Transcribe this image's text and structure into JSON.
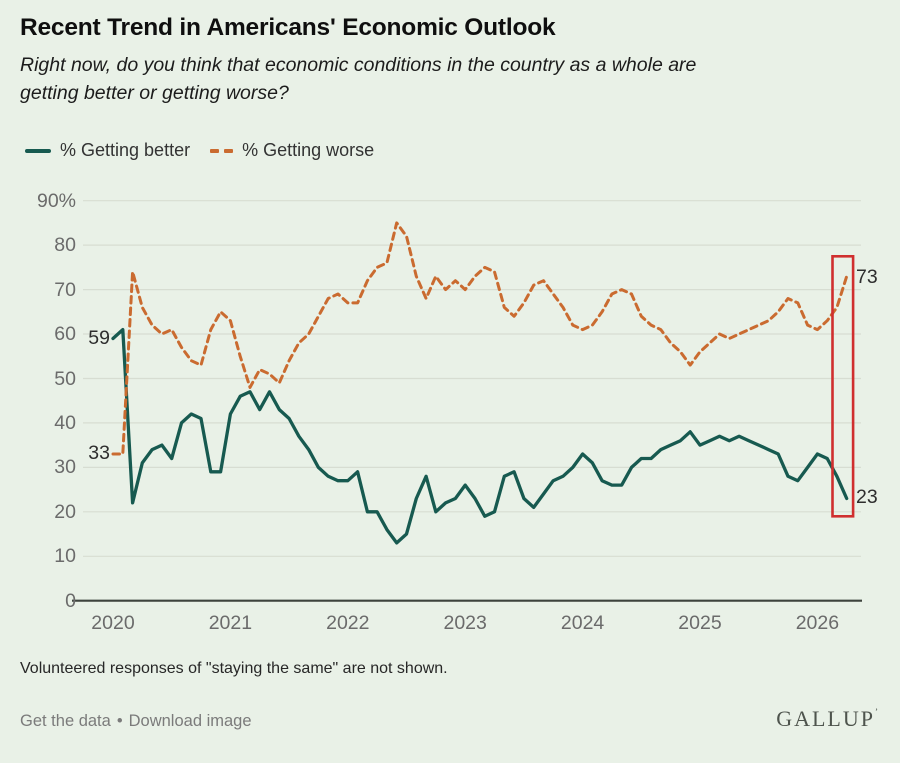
{
  "header": {
    "title": "Recent Trend in Americans' Economic Outlook",
    "subtitle_lines": [
      "Right now, do you think that economic conditions in the country as a whole are",
      "getting better or getting worse?"
    ]
  },
  "legend": {
    "better_label": "% Getting better",
    "worse_label": "% Getting worse"
  },
  "chart_data": {
    "type": "line",
    "x_unit": "month",
    "x_start": "2020-01",
    "x_ticks": [
      "2020",
      "2021",
      "2022",
      "2023",
      "2024",
      "2025",
      "2026"
    ],
    "y_ticks": [
      "90%",
      "80",
      "70",
      "60",
      "50",
      "40",
      "30",
      "20",
      "10",
      "0"
    ],
    "ylim": [
      0,
      90
    ],
    "grid": true,
    "legend_position": "top-left",
    "series": [
      {
        "name": "% Getting better",
        "color": "#175a50",
        "style": "solid",
        "start_label": "59",
        "end_label": "23",
        "values": [
          59,
          61,
          22,
          31,
          34,
          35,
          32,
          40,
          42,
          41,
          29,
          29,
          42,
          46,
          47,
          43,
          47,
          43,
          41,
          37,
          34,
          30,
          28,
          27,
          27,
          29,
          20,
          20,
          16,
          13,
          15,
          23,
          28,
          20,
          22,
          23,
          26,
          23,
          19,
          20,
          28,
          29,
          23,
          21,
          24,
          27,
          28,
          30,
          33,
          31,
          27,
          26,
          26,
          30,
          32,
          32,
          34,
          35,
          36,
          38,
          35,
          36,
          37,
          36,
          37,
          36,
          35,
          34,
          33,
          28,
          27,
          30,
          33,
          32,
          28,
          23
        ]
      },
      {
        "name": "% Getting worse",
        "color": "#ca6b30",
        "style": "dashed",
        "start_label": "33",
        "end_label": "73",
        "values": [
          33,
          33,
          74,
          66,
          62,
          60,
          61,
          57,
          54,
          53,
          61,
          65,
          63,
          55,
          48,
          52,
          51,
          49,
          54,
          58,
          60,
          64,
          68,
          69,
          67,
          67,
          72,
          75,
          76,
          85,
          82,
          73,
          68,
          73,
          70,
          72,
          70,
          73,
          75,
          74,
          66,
          64,
          67,
          71,
          72,
          69,
          66,
          62,
          61,
          62,
          65,
          69,
          70,
          69,
          64,
          62,
          61,
          58,
          56,
          53,
          56,
          58,
          60,
          59,
          60,
          61,
          62,
          63,
          65,
          68,
          67,
          62,
          61,
          63,
          66,
          73
        ]
      }
    ],
    "highlight_box": {
      "color": "#d02f2f",
      "top_value": 77.5,
      "bottom_value": 19
    },
    "axis_color": "#3d433d",
    "grid_color": "#d7ddd2"
  },
  "footnote": "Volunteered responses of \"staying the same\" are not shown.",
  "footer": {
    "get_data_label": "Get the data",
    "separator": "•",
    "download_label": "Download image",
    "brand": "GALLUP",
    "brand_mark": "’"
  }
}
